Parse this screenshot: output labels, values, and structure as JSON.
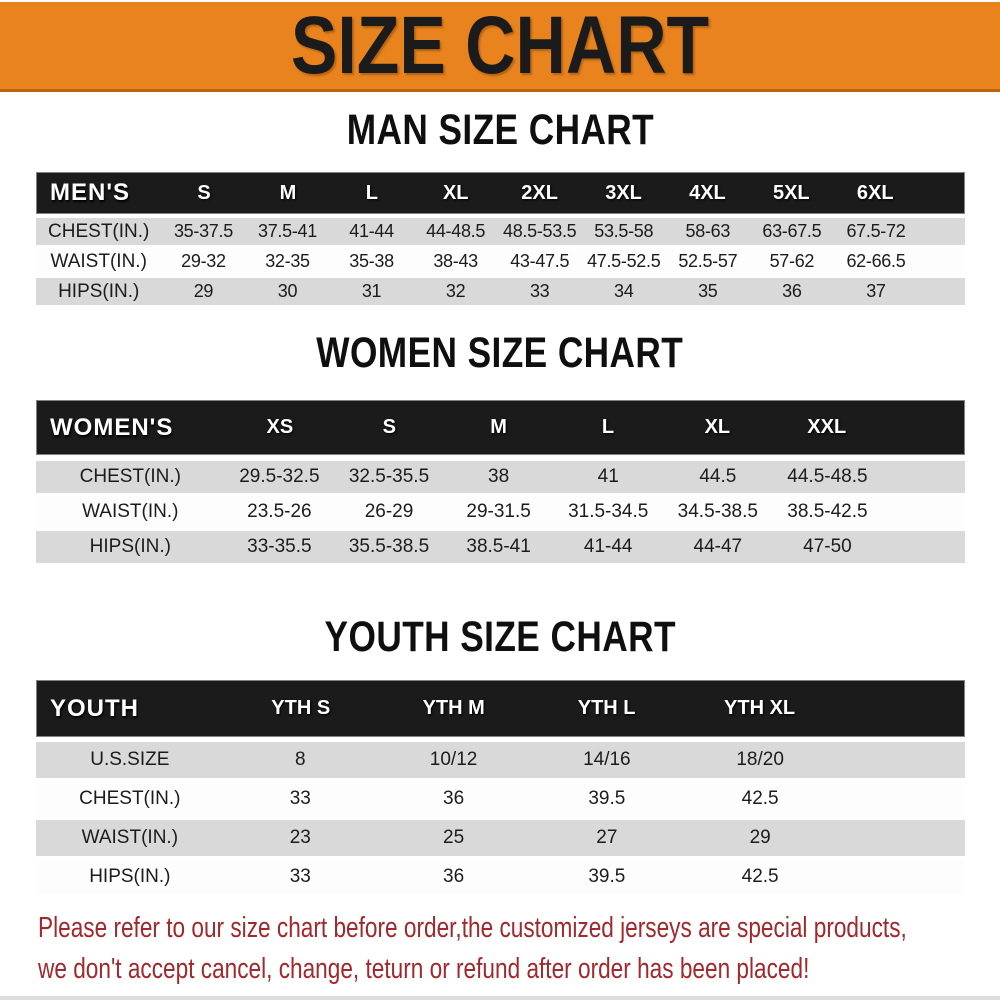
{
  "banner": {
    "title": "SIZE CHART"
  },
  "colors": {
    "banner_bg": "#e8831d",
    "banner_border": "#bb6110",
    "bar_bg": "#1b1b1b",
    "row_gray": "#d9d9d9",
    "row_white": "#fdfdfd",
    "footer_text": "#a1282c"
  },
  "sections": {
    "men": {
      "title": "MAN SIZE CHART",
      "header_label": "MEN'S",
      "columns": [
        "S",
        "M",
        "L",
        "XL",
        "2XL",
        "3XL",
        "4XL",
        "5XL",
        "6XL"
      ],
      "rows": [
        {
          "label": "CHEST(IN.)",
          "values": [
            "35-37.5",
            "37.5-41",
            "41-44",
            "44-48.5",
            "48.5-53.5",
            "53.5-58",
            "58-63",
            "63-67.5",
            "67.5-72"
          ]
        },
        {
          "label": "WAIST(IN.)",
          "values": [
            "29-32",
            "32-35",
            "35-38",
            "38-43",
            "43-47.5",
            "47.5-52.5",
            "52.5-57",
            "57-62",
            "62-66.5"
          ]
        },
        {
          "label": "HIPS(IN.)",
          "values": [
            "29",
            "30",
            "31",
            "32",
            "33",
            "34",
            "35",
            "36",
            "37"
          ]
        }
      ]
    },
    "women": {
      "title": "WOMEN SIZE CHART",
      "header_label": "WOMEN'S",
      "columns": [
        "XS",
        "S",
        "M",
        "L",
        "XL",
        "XXL"
      ],
      "rows": [
        {
          "label": "CHEST(IN.)",
          "values": [
            "29.5-32.5",
            "32.5-35.5",
            "38",
            "41",
            "44.5",
            "44.5-48.5"
          ]
        },
        {
          "label": "WAIST(IN.)",
          "values": [
            "23.5-26",
            "26-29",
            "29-31.5",
            "31.5-34.5",
            "34.5-38.5",
            "38.5-42.5"
          ]
        },
        {
          "label": "HIPS(IN.)",
          "values": [
            "33-35.5",
            "35.5-38.5",
            "38.5-41",
            "41-44",
            "44-47",
            "47-50"
          ]
        }
      ]
    },
    "youth": {
      "title": "YOUTH SIZE CHART",
      "header_label": "YOUTH",
      "columns": [
        "YTH S",
        "YTH M",
        "YTH L",
        "YTH XL"
      ],
      "rows": [
        {
          "label": "U.S.SIZE",
          "values": [
            "8",
            "10/12",
            "14/16",
            "18/20"
          ]
        },
        {
          "label": "CHEST(IN.)",
          "values": [
            "33",
            "36",
            "39.5",
            "42.5"
          ]
        },
        {
          "label": "WAIST(IN.)",
          "values": [
            "23",
            "25",
            "27",
            "29"
          ]
        },
        {
          "label": "HIPS(IN.)",
          "values": [
            "33",
            "36",
            "39.5",
            "42.5"
          ]
        }
      ]
    }
  },
  "footer": {
    "line1": "Please refer to our size chart before order,the customized jerseys are special products,",
    "line2": "we don't accept cancel, change, teturn or refund after order has been placed!"
  }
}
